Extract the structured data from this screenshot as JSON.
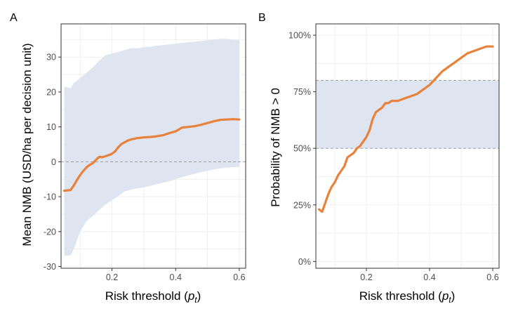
{
  "colors": {
    "line": "#E8823A",
    "band": "#DDE3F0",
    "panel_border": "#333333",
    "grid": "#EBEBEB",
    "zero_line": "#9E9E9E"
  },
  "chart_data": [
    {
      "panel": "A",
      "type": "line",
      "xlabel_main": "Risk threshold (",
      "xlabel_var": "p",
      "xlabel_sub": "t",
      "xlabel_close": ")",
      "ylabel": "Mean NMB (USD/ha per decision unit)",
      "xlim": [
        0.04,
        0.62
      ],
      "ylim": [
        -30.5,
        39.5
      ],
      "xticks": [
        0.2,
        0.4,
        0.6
      ],
      "xtick_labels": [
        "0.2",
        "0.4",
        "0.6"
      ],
      "yticks": [
        -30,
        -20,
        -10,
        0,
        10,
        20,
        30
      ],
      "ytick_labels": [
        "-30",
        "-20",
        "-10",
        "0",
        "10",
        "20",
        "30"
      ],
      "reference_line": {
        "y": 0,
        "style": "dashed"
      },
      "grid": true,
      "series": [
        {
          "role": "mean",
          "x": [
            0.05,
            0.07,
            0.08,
            0.09,
            0.1,
            0.11,
            0.12,
            0.13,
            0.14,
            0.15,
            0.16,
            0.17,
            0.18,
            0.19,
            0.2,
            0.21,
            0.22,
            0.23,
            0.24,
            0.25,
            0.26,
            0.27,
            0.28,
            0.3,
            0.32,
            0.34,
            0.36,
            0.38,
            0.4,
            0.42,
            0.44,
            0.46,
            0.48,
            0.5,
            0.52,
            0.54,
            0.56,
            0.58,
            0.6
          ],
          "y": [
            -8.3,
            -8.1,
            -6.8,
            -5.2,
            -3.8,
            -2.6,
            -1.6,
            -0.9,
            -0.4,
            0.6,
            1.4,
            1.3,
            1.6,
            1.9,
            2.3,
            3.0,
            4.2,
            5.1,
            5.6,
            6.1,
            6.4,
            6.6,
            6.8,
            7.0,
            7.1,
            7.3,
            7.6,
            8.2,
            8.7,
            9.8,
            10.0,
            10.2,
            10.6,
            11.1,
            11.6,
            12.0,
            12.1,
            12.2,
            12.1
          ]
        },
        {
          "role": "interval",
          "x": [
            0.05,
            0.07,
            0.08,
            0.1,
            0.12,
            0.14,
            0.16,
            0.18,
            0.2,
            0.22,
            0.24,
            0.26,
            0.28,
            0.3,
            0.32,
            0.34,
            0.36,
            0.38,
            0.4,
            0.42,
            0.44,
            0.46,
            0.48,
            0.5,
            0.52,
            0.54,
            0.56,
            0.58,
            0.6
          ],
          "lower": [
            -27,
            -26.8,
            -25,
            -20,
            -17,
            -15.5,
            -13.8,
            -12.2,
            -11.0,
            -9.8,
            -8.5,
            -8.0,
            -7.6,
            -7.3,
            -6.9,
            -6.4,
            -6.0,
            -5.6,
            -5.0,
            -4.4,
            -3.9,
            -3.4,
            -3.0,
            -2.6,
            -2.2,
            -1.9,
            -1.7,
            -1.6,
            -1.5
          ],
          "upper": [
            21.5,
            21,
            22.5,
            24,
            25.5,
            27,
            29,
            30.5,
            31,
            31.5,
            32,
            32.5,
            32.5,
            32.8,
            33,
            33.2,
            33.4,
            33.6,
            33.8,
            34,
            34.2,
            34.4,
            34.6,
            34.8,
            35,
            35.2,
            35.2,
            35,
            34.8
          ]
        }
      ]
    },
    {
      "panel": "B",
      "type": "line",
      "xlabel_main": "Risk threshold (",
      "xlabel_var": "p",
      "xlabel_sub": "t",
      "xlabel_close": ")",
      "ylabel": "Probability of NMB > 0",
      "xlim": [
        0.04,
        0.62
      ],
      "ylim": [
        -0.03,
        1.05
      ],
      "xticks": [
        0.2,
        0.4,
        0.6
      ],
      "xtick_labels": [
        "0.2",
        "0.4",
        "0.6"
      ],
      "yticks": [
        0,
        0.25,
        0.5,
        0.75,
        1.0
      ],
      "ytick_labels": [
        "0%",
        "25%",
        "50%",
        "75%",
        "100%"
      ],
      "shaded_band": {
        "y_from": 0.5,
        "y_to": 0.8,
        "style": "dashed-edges"
      },
      "grid": true,
      "series": [
        {
          "role": "probability",
          "x": [
            0.05,
            0.06,
            0.07,
            0.08,
            0.09,
            0.1,
            0.11,
            0.12,
            0.13,
            0.14,
            0.15,
            0.16,
            0.17,
            0.18,
            0.19,
            0.2,
            0.21,
            0.22,
            0.23,
            0.24,
            0.25,
            0.26,
            0.27,
            0.28,
            0.29,
            0.3,
            0.32,
            0.34,
            0.36,
            0.38,
            0.4,
            0.42,
            0.44,
            0.46,
            0.48,
            0.5,
            0.52,
            0.54,
            0.56,
            0.58,
            0.6
          ],
          "y": [
            0.23,
            0.22,
            0.26,
            0.3,
            0.33,
            0.35,
            0.38,
            0.4,
            0.42,
            0.46,
            0.47,
            0.48,
            0.5,
            0.51,
            0.53,
            0.55,
            0.58,
            0.63,
            0.66,
            0.67,
            0.68,
            0.7,
            0.7,
            0.71,
            0.71,
            0.71,
            0.72,
            0.73,
            0.74,
            0.76,
            0.78,
            0.81,
            0.84,
            0.86,
            0.88,
            0.9,
            0.92,
            0.93,
            0.94,
            0.95,
            0.95
          ]
        }
      ]
    }
  ]
}
